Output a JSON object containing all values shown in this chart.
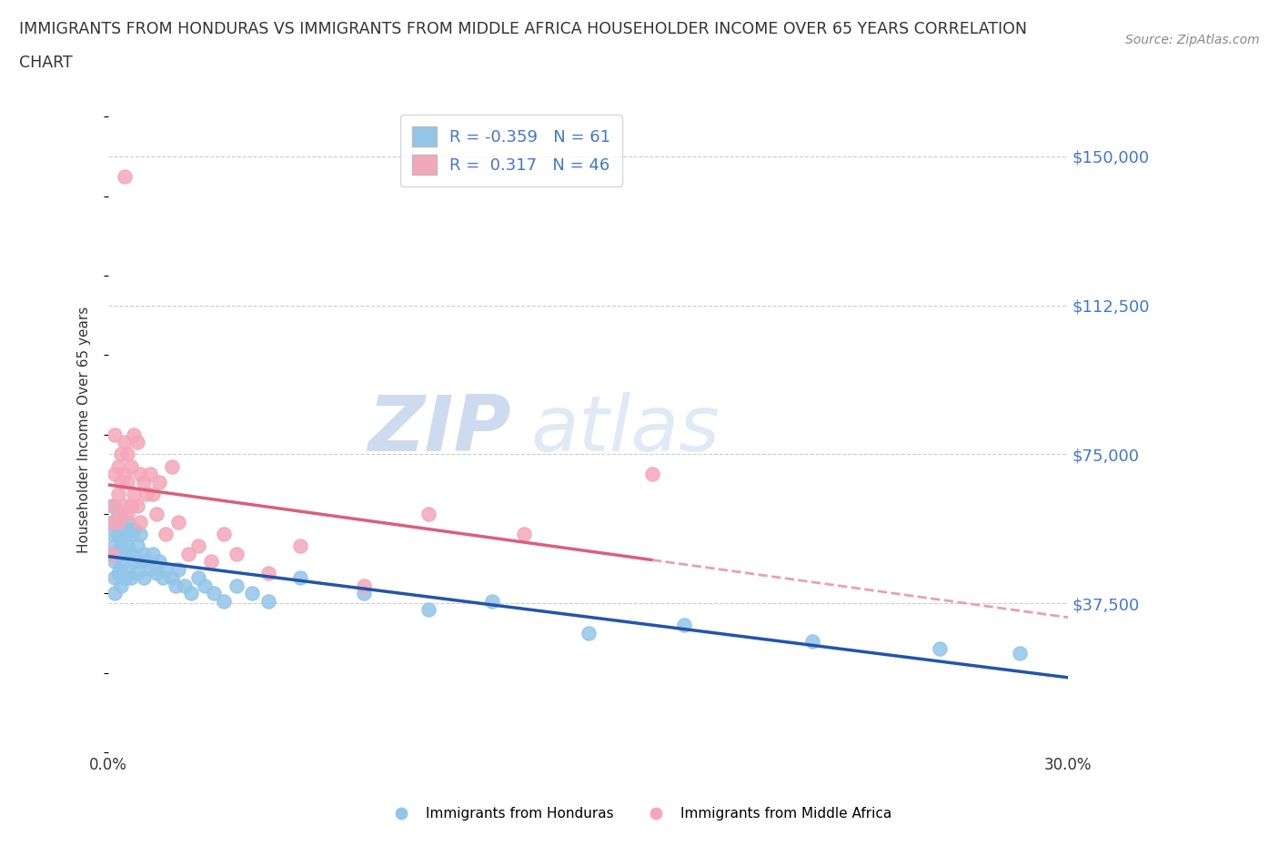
{
  "title_line1": "IMMIGRANTS FROM HONDURAS VS IMMIGRANTS FROM MIDDLE AFRICA HOUSEHOLDER INCOME OVER 65 YEARS CORRELATION",
  "title_line2": "CHART",
  "source": "Source: ZipAtlas.com",
  "ylabel": "Householder Income Over 65 years",
  "xlim": [
    0.0,
    0.3
  ],
  "ylim": [
    0,
    162500
  ],
  "yticks": [
    0,
    37500,
    75000,
    112500,
    150000
  ],
  "ytick_labels": [
    "",
    "$37,500",
    "$75,000",
    "$112,500",
    "$150,000"
  ],
  "xticks": [
    0.0,
    0.05,
    0.1,
    0.15,
    0.2,
    0.25,
    0.3
  ],
  "xtick_labels": [
    "0.0%",
    "",
    "",
    "",
    "",
    "",
    "30.0%"
  ],
  "honduras_color": "#92c5e8",
  "middle_africa_color": "#f4a7b9",
  "honduras_R": -0.359,
  "honduras_N": 61,
  "middle_africa_R": 0.317,
  "middle_africa_N": 46,
  "honduras_line_color": "#2255aa",
  "middle_africa_line_color": "#d9607a",
  "middle_africa_line_dashed_color": "#e8a0b0",
  "watermark_zip": "ZIP",
  "watermark_atlas": "atlas",
  "legend_label_1": "Immigrants from Honduras",
  "legend_label_2": "Immigrants from Middle Africa",
  "background_color": "#ffffff",
  "grid_color": "#cccccc",
  "axis_label_color": "#4477cc",
  "title_color": "#333333",
  "honduras_x": [
    0.001,
    0.001,
    0.001,
    0.002,
    0.002,
    0.002,
    0.002,
    0.002,
    0.003,
    0.003,
    0.003,
    0.003,
    0.004,
    0.004,
    0.004,
    0.004,
    0.005,
    0.005,
    0.005,
    0.006,
    0.006,
    0.006,
    0.007,
    0.007,
    0.007,
    0.008,
    0.008,
    0.009,
    0.009,
    0.01,
    0.01,
    0.011,
    0.011,
    0.012,
    0.013,
    0.014,
    0.015,
    0.016,
    0.017,
    0.018,
    0.02,
    0.021,
    0.022,
    0.024,
    0.026,
    0.028,
    0.03,
    0.033,
    0.036,
    0.04,
    0.045,
    0.05,
    0.06,
    0.08,
    0.1,
    0.12,
    0.15,
    0.18,
    0.22,
    0.26,
    0.285
  ],
  "honduras_y": [
    62000,
    55000,
    50000,
    58000,
    52000,
    48000,
    44000,
    40000,
    60000,
    55000,
    50000,
    45000,
    58000,
    52000,
    47000,
    42000,
    55000,
    50000,
    44000,
    58000,
    52000,
    46000,
    55000,
    50000,
    44000,
    56000,
    48000,
    52000,
    45000,
    55000,
    48000,
    50000,
    44000,
    48000,
    46000,
    50000,
    45000,
    48000,
    44000,
    46000,
    44000,
    42000,
    46000,
    42000,
    40000,
    44000,
    42000,
    40000,
    38000,
    42000,
    40000,
    38000,
    44000,
    40000,
    36000,
    38000,
    30000,
    32000,
    28000,
    26000,
    25000
  ],
  "middle_africa_x": [
    0.001,
    0.001,
    0.002,
    0.002,
    0.002,
    0.003,
    0.003,
    0.003,
    0.004,
    0.004,
    0.004,
    0.005,
    0.005,
    0.005,
    0.006,
    0.006,
    0.006,
    0.007,
    0.007,
    0.008,
    0.008,
    0.009,
    0.009,
    0.01,
    0.01,
    0.011,
    0.012,
    0.013,
    0.014,
    0.015,
    0.016,
    0.018,
    0.02,
    0.022,
    0.025,
    0.028,
    0.032,
    0.036,
    0.04,
    0.05,
    0.06,
    0.08,
    0.1,
    0.13,
    0.17,
    0.005
  ],
  "middle_africa_y": [
    58000,
    50000,
    80000,
    70000,
    62000,
    72000,
    65000,
    58000,
    75000,
    68000,
    60000,
    78000,
    70000,
    62000,
    75000,
    68000,
    60000,
    72000,
    62000,
    80000,
    65000,
    78000,
    62000,
    70000,
    58000,
    68000,
    65000,
    70000,
    65000,
    60000,
    68000,
    55000,
    72000,
    58000,
    50000,
    52000,
    48000,
    55000,
    50000,
    45000,
    52000,
    42000,
    60000,
    55000,
    70000,
    145000
  ]
}
